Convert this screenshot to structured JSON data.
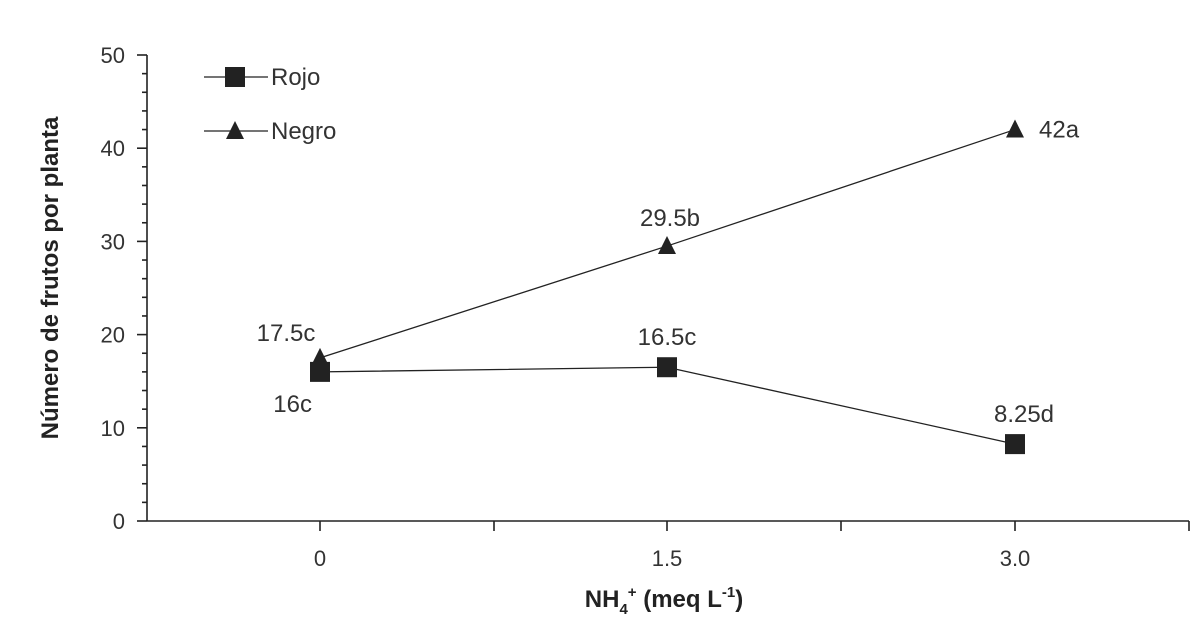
{
  "chart_data": {
    "type": "line",
    "title": "",
    "xlabel": {
      "prefix": "NH",
      "sub": "4",
      "sup": "+",
      "mid": " (meq L",
      "unit_sup": "-1",
      "suffix": ")"
    },
    "ylabel": "Número de frutos por planta",
    "categories": [
      "0",
      "1.5",
      "3.0"
    ],
    "ylim": [
      0,
      50
    ],
    "yticks": [
      "0",
      "10",
      "20",
      "30",
      "40",
      "50"
    ],
    "grid": false,
    "legend_position": "top-left",
    "series": [
      {
        "name": "Rojo",
        "marker": "square",
        "values": [
          16,
          16.5,
          8.25
        ],
        "labels": [
          "16c",
          "16.5c",
          "8.25d"
        ]
      },
      {
        "name": "Negro",
        "marker": "triangle",
        "values": [
          17.5,
          29.5,
          42
        ],
        "labels": [
          "17.5c",
          "29.5b",
          "42a"
        ]
      }
    ]
  },
  "colors": {
    "marker": "#222222",
    "text": "#333333"
  }
}
